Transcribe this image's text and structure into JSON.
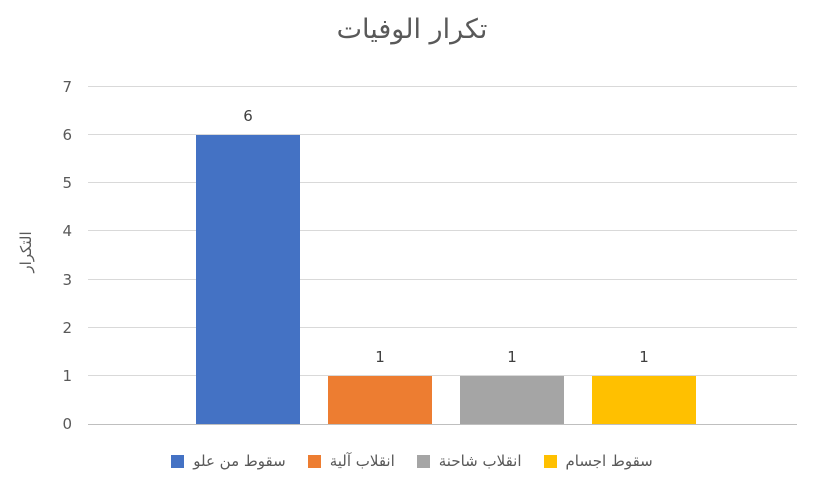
{
  "chart_data": {
    "type": "bar",
    "title": "تكرار الوفيات",
    "xlabel": "",
    "ylabel": "التكرار",
    "categories": [
      "سقوط من علو",
      "انقلاب آلية",
      "انقلاب شاحنة",
      "سقوط اجسام"
    ],
    "values": [
      6,
      1,
      1,
      1
    ],
    "data_labels": [
      "6",
      "1",
      "1",
      "1"
    ],
    "colors": [
      "#4472C4",
      "#ED7D31",
      "#A5A5A5",
      "#FFC000"
    ],
    "ylim": [
      0,
      7
    ],
    "yticks": [
      "0",
      "1",
      "2",
      "3",
      "4",
      "5",
      "6",
      "7"
    ],
    "grid": true,
    "legend_position": "bottom",
    "legend": [
      {
        "label": "سقوط من علو",
        "color": "#4472C4"
      },
      {
        "label": "انقلاب آلية",
        "color": "#ED7D31"
      },
      {
        "label": "انقلاب شاحنة",
        "color": "#A5A5A5"
      },
      {
        "label": "سقوط اجسام",
        "color": "#FFC000"
      }
    ],
    "text_color": "#595959",
    "gridline_color": "#d9d9d9",
    "axisline_color": "#bfbfbf"
  }
}
